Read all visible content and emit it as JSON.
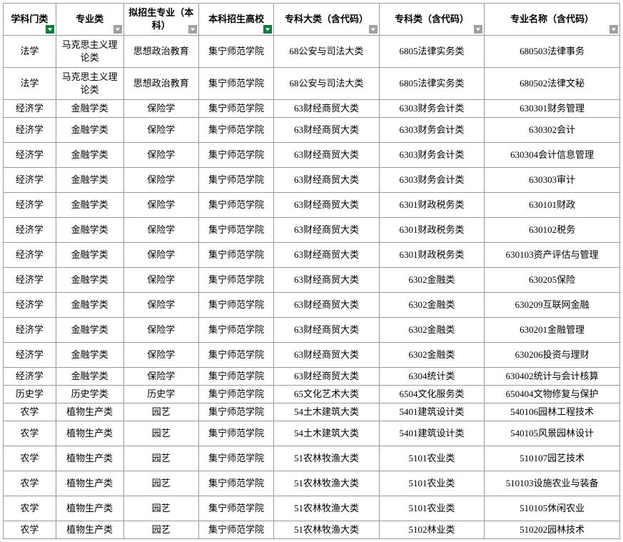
{
  "columns": [
    {
      "label": "学科门类",
      "filter": "green"
    },
    {
      "label": "专业类",
      "filter": "gray"
    },
    {
      "label": "拟招生专业（本科）",
      "filter": "gray"
    },
    {
      "label": "本科招生高校",
      "filter": "green"
    },
    {
      "label": "专科大类（含代码）",
      "filter": "gray"
    },
    {
      "label": "专科类（含代码）",
      "filter": "gray"
    },
    {
      "label": "专业名称（含代码）",
      "filter": "gray"
    }
  ],
  "rows": [
    {
      "h": "tall",
      "c": [
        "法学",
        "马克思主义理论类",
        "思想政治教育",
        "集宁师范学院",
        "68公安与司法大类",
        "6805法律实务类",
        "680503法律事务"
      ]
    },
    {
      "h": "tall",
      "c": [
        "法学",
        "马克思主义理论类",
        "思想政治教育",
        "集宁师范学院",
        "68公安与司法大类",
        "6805法律实务类",
        "680502法律文秘"
      ]
    },
    {
      "h": "short",
      "c": [
        "经济学",
        "金融学类",
        "保险学",
        "集宁师范学院",
        "63财经商贸大类",
        "6303财务会计类",
        "630301财务管理"
      ]
    },
    {
      "h": "",
      "c": [
        "经济学",
        "金融学类",
        "保险学",
        "集宁师范学院",
        "63财经商贸大类",
        "6303财务会计类",
        "630302会计"
      ]
    },
    {
      "h": "",
      "c": [
        "经济学",
        "金融学类",
        "保险学",
        "集宁师范学院",
        "63财经商贸大类",
        "6303财务会计类",
        "630304会计信息管理"
      ]
    },
    {
      "h": "",
      "c": [
        "经济学",
        "金融学类",
        "保险学",
        "集宁师范学院",
        "63财经商贸大类",
        "6303财务会计类",
        "630303审计"
      ]
    },
    {
      "h": "",
      "c": [
        "经济学",
        "金融学类",
        "保险学",
        "集宁师范学院",
        "63财经商贸大类",
        "6301财政税务类",
        "630101财政"
      ]
    },
    {
      "h": "",
      "c": [
        "经济学",
        "金融学类",
        "保险学",
        "集宁师范学院",
        "63财经商贸大类",
        "6301财政税务类",
        "630102税务"
      ]
    },
    {
      "h": "",
      "c": [
        "经济学",
        "金融学类",
        "保险学",
        "集宁师范学院",
        "63财经商贸大类",
        "6301财政税务类",
        "630103资产评估与管理"
      ]
    },
    {
      "h": "",
      "c": [
        "经济学",
        "金融学类",
        "保险学",
        "集宁师范学院",
        "63财经商贸大类",
        "6302金融类",
        "630205保险"
      ]
    },
    {
      "h": "",
      "c": [
        "经济学",
        "金融学类",
        "保险学",
        "集宁师范学院",
        "63财经商贸大类",
        "6302金融类",
        "630209互联网金融"
      ]
    },
    {
      "h": "",
      "c": [
        "经济学",
        "金融学类",
        "保险学",
        "集宁师范学院",
        "63财经商贸大类",
        "6302金融类",
        "630201金融管理"
      ]
    },
    {
      "h": "",
      "c": [
        "经济学",
        "金融学类",
        "保险学",
        "集宁师范学院",
        "63财经商贸大类",
        "6302金融类",
        "630206投资与理财"
      ]
    },
    {
      "h": "short",
      "c": [
        "经济学",
        "金融学类",
        "保险学",
        "集宁师范学院",
        "63财经商贸大类",
        "6304统计类",
        "630402统计与会计核算"
      ]
    },
    {
      "h": "short",
      "c": [
        "历史学",
        "历史学类",
        "历史学",
        "集宁师范学院",
        "65文化艺术大类",
        "6504文化服务类",
        "650404文物修复与保护"
      ]
    },
    {
      "h": "short",
      "c": [
        "农学",
        "植物生产类",
        "园艺",
        "集宁师范学院",
        "54土木建筑大类",
        "5401建筑设计类",
        "540106园林工程技术"
      ]
    },
    {
      "h": "",
      "c": [
        "农学",
        "植物生产类",
        "园艺",
        "集宁师范学院",
        "54土木建筑大类",
        "5401建筑设计类",
        "540105风景园林设计"
      ]
    },
    {
      "h": "",
      "c": [
        "农学",
        "植物生产类",
        "园艺",
        "集宁师范学院",
        "51农林牧渔大类",
        "5101农业类",
        "510107园艺技术"
      ]
    },
    {
      "h": "",
      "c": [
        "农学",
        "植物生产类",
        "园艺",
        "集宁师范学院",
        "51农林牧渔大类",
        "5101农业类",
        "510103设施农业与装备"
      ]
    },
    {
      "h": "",
      "c": [
        "农学",
        "植物生产类",
        "园艺",
        "集宁师范学院",
        "51农林牧渔大类",
        "5101农业类",
        "510105休闲农业"
      ]
    },
    {
      "h": "short",
      "c": [
        "农学",
        "植物生产类",
        "园艺",
        "集宁师范学院",
        "51农林牧渔大类",
        "5102林业类",
        "510202园林技术"
      ]
    }
  ]
}
